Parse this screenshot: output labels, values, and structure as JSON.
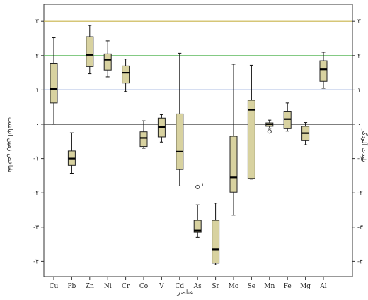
{
  "chart_data": {
    "type": "boxplot",
    "title": "",
    "xlabel": "عناصر",
    "ylabel_left": "شاخص زمین انباشت",
    "ylabel_right": "شدت آلودگی",
    "categories": [
      "Cu",
      "Pb",
      "Zn",
      "Ni",
      "Cr",
      "Co",
      "V",
      "Cd",
      "As",
      "Sr",
      "Mo",
      "Se",
      "Mn",
      "Fe",
      "Mg",
      "Al"
    ],
    "ylim": [
      -4.5,
      3.1
    ],
    "yticks": [
      {
        "value": 3,
        "label": "۳"
      },
      {
        "value": 2,
        "label": "۲"
      },
      {
        "value": 1,
        "label": "۱"
      },
      {
        "value": 0,
        "label": "۰"
      },
      {
        "value": -1,
        "label": "-۱"
      },
      {
        "value": -2,
        "label": "-۲"
      },
      {
        "value": -3,
        "label": "-۳"
      },
      {
        "value": -4,
        "label": "-۴"
      }
    ],
    "reference_lines": [
      {
        "value": 3,
        "color": "#c8b44a"
      },
      {
        "value": 2,
        "color": "#5cb85c"
      },
      {
        "value": 1,
        "color": "#5b7fc7"
      },
      {
        "value": 0,
        "color": "#333333"
      }
    ],
    "boxes": [
      {
        "name": "Cu",
        "min": 0.0,
        "q1": 0.62,
        "median": 1.03,
        "q3": 1.78,
        "max": 2.52
      },
      {
        "name": "Pb",
        "min": -1.43,
        "q1": -1.2,
        "median": -1.0,
        "q3": -0.78,
        "max": -0.25
      },
      {
        "name": "Zn",
        "min": 1.47,
        "q1": 1.68,
        "median": 2.02,
        "q3": 2.55,
        "max": 2.88
      },
      {
        "name": "Ni",
        "min": 1.38,
        "q1": 1.58,
        "median": 1.88,
        "q3": 2.05,
        "max": 2.43
      },
      {
        "name": "Cr",
        "min": 0.95,
        "q1": 1.2,
        "median": 1.5,
        "q3": 1.7,
        "max": 1.9
      },
      {
        "name": "Co",
        "min": -0.7,
        "q1": -0.65,
        "median": -0.4,
        "q3": -0.22,
        "max": 0.1
      },
      {
        "name": "V",
        "min": -0.52,
        "q1": -0.37,
        "median": -0.08,
        "q3": 0.18,
        "max": 0.28
      },
      {
        "name": "Cd",
        "min": -1.8,
        "q1": -1.32,
        "median": -0.8,
        "q3": 0.3,
        "max": 2.07
      },
      {
        "name": "As",
        "min": -3.3,
        "q1": -3.15,
        "median": -3.1,
        "q3": -2.8,
        "max": -2.35
      },
      {
        "name": "Sr",
        "min": -4.1,
        "q1": -4.05,
        "median": -3.65,
        "q3": -2.8,
        "max": -2.3
      },
      {
        "name": "Mo",
        "min": -2.65,
        "q1": -1.98,
        "median": -1.55,
        "q3": -0.35,
        "max": 1.75
      },
      {
        "name": "Se",
        "min": -1.6,
        "q1": -1.58,
        "median": 0.42,
        "q3": 0.7,
        "max": 1.72
      },
      {
        "name": "Mn",
        "min": -0.12,
        "q1": -0.06,
        "median": 0.0,
        "q3": 0.04,
        "max": 0.12
      },
      {
        "name": "Fe",
        "min": -0.2,
        "q1": -0.13,
        "median": 0.15,
        "q3": 0.38,
        "max": 0.62
      },
      {
        "name": "Mg",
        "min": -0.6,
        "q1": -0.48,
        "median": -0.26,
        "q3": -0.06,
        "max": 0.05
      },
      {
        "name": "Al",
        "min": 1.05,
        "q1": 1.25,
        "median": 1.6,
        "q3": 1.85,
        "max": 2.1
      }
    ],
    "outliers": [
      {
        "category": "As",
        "value": -1.83,
        "label": "۱"
      },
      {
        "category": "Mn",
        "value": -0.21,
        "label": ""
      }
    ],
    "box_fill": "#d8d2a0",
    "grid": false
  }
}
